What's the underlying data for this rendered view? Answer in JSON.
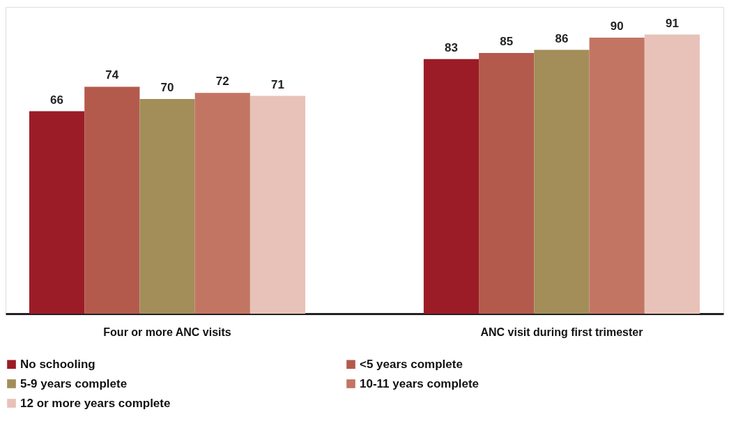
{
  "chart_data": {
    "type": "bar",
    "categories": [
      "Four or more ANC visits",
      "ANC visit during first trimester"
    ],
    "series": [
      {
        "name": "No schooling",
        "color": "#9b1c26",
        "values": [
          66,
          83
        ]
      },
      {
        "name": "<5 years complete",
        "color": "#b35a4c",
        "values": [
          74,
          85
        ]
      },
      {
        "name": "5-9 years complete",
        "color": "#a38d59",
        "values": [
          70,
          86
        ]
      },
      {
        "name": "10-11 years complete",
        "color": "#c37563",
        "values": [
          72,
          90
        ]
      },
      {
        "name": "12 or more years complete",
        "color": "#e8c2b8",
        "values": [
          71,
          91
        ]
      }
    ],
    "data_labels": true,
    "legend": "bottom",
    "grid": false,
    "tick_labels": "x"
  }
}
